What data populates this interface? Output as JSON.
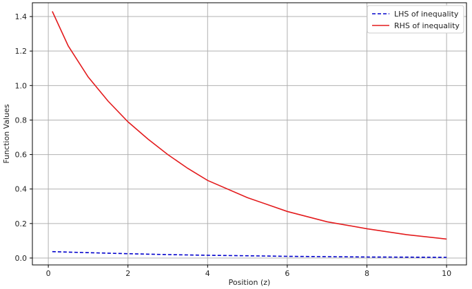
{
  "chart_data": {
    "type": "line",
    "title": "",
    "xlabel": "Position (z)",
    "ylabel": "Function Values",
    "xlim": [
      -0.4,
      10.5
    ],
    "ylim": [
      -0.04,
      1.48
    ],
    "xticks": [
      0,
      2,
      4,
      6,
      8,
      10
    ],
    "yticks": [
      0.0,
      0.2,
      0.4,
      0.6,
      0.8,
      1.0,
      1.2,
      1.4
    ],
    "xtick_labels": [
      "0",
      "2",
      "4",
      "6",
      "8",
      "10"
    ],
    "ytick_labels": [
      "0.0",
      "0.2",
      "0.4",
      "0.6",
      "0.8",
      "1.0",
      "1.2",
      "1.4"
    ],
    "grid": true,
    "legend_position": "top-right",
    "series": [
      {
        "name": "LHS of inequality",
        "color": "#0000cc",
        "style": "dashed",
        "x": [
          0.1,
          1,
          2,
          3,
          4,
          5,
          6,
          7,
          8,
          9,
          10
        ],
        "y": [
          0.037,
          0.031,
          0.025,
          0.02,
          0.016,
          0.013,
          0.01,
          0.008,
          0.006,
          0.005,
          0.004
        ]
      },
      {
        "name": "RHS of inequality",
        "color": "#e31a1c",
        "style": "solid",
        "x": [
          0.1,
          0.5,
          1,
          1.5,
          2,
          2.5,
          3,
          3.5,
          4,
          5,
          6,
          7,
          8,
          9,
          10
        ],
        "y": [
          1.43,
          1.23,
          1.05,
          0.91,
          0.79,
          0.69,
          0.6,
          0.52,
          0.45,
          0.35,
          0.27,
          0.21,
          0.17,
          0.135,
          0.11
        ]
      }
    ]
  }
}
